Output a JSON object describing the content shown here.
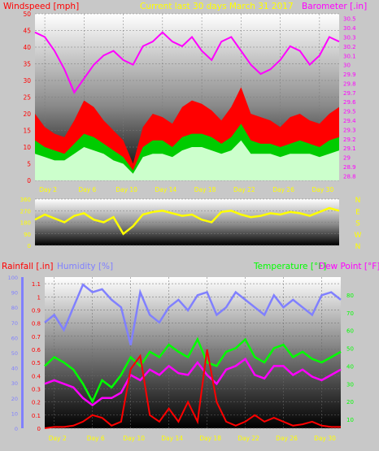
{
  "header": {
    "left_title": "Windspeed [mph]",
    "center_title": "Current last 30 days March 31 2017",
    "right_title": "Barometer [.in]"
  },
  "colors": {
    "windspeed": "#ff0000",
    "gust": "#00cc00",
    "avg_wind": "#ccffcc",
    "barometer": "#ff00ff",
    "direction": "#ffff00",
    "rainfall": "#ff0000",
    "humidity": "#8080ff",
    "temperature": "#00ff00",
    "dew_point": "#ff00ff",
    "title_yellow": "#ffff00",
    "axis_red": "#ff0000",
    "axis_magenta": "#ff00ff"
  },
  "x_tick_labels": [
    "Day 2",
    "Day 6",
    "Day 10",
    "Day 14",
    "Day 18",
    "Day 22",
    "Day 26",
    "Day 30"
  ],
  "chart_data": [
    {
      "type": "area",
      "name": "wind",
      "ylabel": "Windspeed [mph]",
      "ylim": [
        0,
        50
      ],
      "yticks": [
        0,
        5,
        10,
        15,
        20,
        25,
        30,
        35,
        40,
        45,
        50
      ],
      "y2label": "Barometer [.in]",
      "y2lim": [
        28.75,
        30.55
      ],
      "y2ticks": [
        "28.8",
        "28.9",
        "29",
        "29.1",
        "29.2",
        "29.3",
        "29.4",
        "29.5",
        "29.6",
        "29.7",
        "29.8",
        "29.9",
        "30",
        "30.1",
        "30.2",
        "30.3",
        "30.4",
        "30.5"
      ],
      "x_days": [
        1,
        2,
        3,
        4,
        5,
        6,
        7,
        8,
        9,
        10,
        11,
        12,
        13,
        14,
        15,
        16,
        17,
        18,
        19,
        20,
        21,
        22,
        23,
        24,
        25,
        26,
        27,
        28,
        29,
        30,
        31,
        32
      ],
      "series": [
        {
          "name": "Windspeed",
          "values": [
            20,
            16,
            14,
            13,
            18,
            24,
            22,
            18,
            15,
            12,
            5,
            16,
            20,
            19,
            17,
            22,
            24,
            23,
            21,
            18,
            22,
            28,
            20,
            19,
            18,
            16,
            19,
            20,
            18,
            17,
            20,
            22
          ]
        },
        {
          "name": "Gust",
          "values": [
            12,
            10,
            9,
            8,
            11,
            14,
            13,
            11,
            9,
            7,
            3,
            10,
            12,
            12,
            10,
            13,
            14,
            14,
            13,
            11,
            13,
            17,
            12,
            11,
            11,
            10,
            11,
            12,
            11,
            10,
            12,
            13
          ]
        },
        {
          "name": "Average",
          "values": [
            8,
            7,
            6,
            6,
            8,
            10,
            9,
            8,
            6,
            5,
            2,
            7,
            8,
            8,
            7,
            9,
            10,
            10,
            9,
            8,
            9,
            12,
            8,
            8,
            8,
            7,
            8,
            8,
            8,
            7,
            8,
            9
          ]
        },
        {
          "name": "Barometer",
          "values": [
            30.35,
            30.3,
            30.15,
            29.95,
            29.7,
            29.85,
            30.0,
            30.1,
            30.15,
            30.05,
            30.0,
            30.2,
            30.25,
            30.35,
            30.25,
            30.2,
            30.3,
            30.15,
            30.05,
            30.25,
            30.3,
            30.15,
            30.0,
            29.9,
            29.95,
            30.05,
            30.2,
            30.15,
            30.0,
            30.1,
            30.3,
            30.25
          ]
        }
      ]
    },
    {
      "type": "scatter",
      "name": "wind_direction",
      "ylim": [
        0,
        360
      ],
      "yticks": [
        0,
        90,
        180,
        270,
        360
      ],
      "compass_labels": [
        "N",
        "W",
        "S",
        "E",
        "N"
      ],
      "x_days": [
        1,
        2,
        3,
        4,
        5,
        6,
        7,
        8,
        9,
        10,
        11,
        12,
        13,
        14,
        15,
        16,
        17,
        18,
        19,
        20,
        21,
        22,
        23,
        24,
        25,
        26,
        27,
        28,
        29,
        30,
        31,
        32
      ],
      "series": [
        {
          "name": "Direction",
          "values": [
            200,
            240,
            210,
            180,
            230,
            250,
            200,
            180,
            220,
            90,
            150,
            240,
            260,
            270,
            250,
            230,
            240,
            200,
            180,
            260,
            270,
            240,
            220,
            230,
            250,
            240,
            260,
            250,
            230,
            260,
            290,
            270
          ]
        }
      ]
    },
    {
      "type": "line",
      "name": "rain_humidity_temp",
      "left_label_rain": "Rainfall [.in]",
      "left_label_humidity": "Humidity [%]",
      "right_label_temp": "Temperature [°F]",
      "right_label_dew": "Dew Point [°F]",
      "rain_ylim": [
        0,
        1.15
      ],
      "rain_yticks": [
        "0",
        "0.1",
        "0.2",
        "0.3",
        "0.4",
        "0.5",
        "0.6",
        "0.7",
        "0.8",
        "0.9",
        "1",
        "1.1"
      ],
      "humidity_yticks": [
        "0",
        "10",
        "20",
        "30",
        "40",
        "50",
        "60",
        "70",
        "80",
        "90",
        "100"
      ],
      "temp_ylim": [
        5,
        90
      ],
      "temp_yticks": [
        "10",
        "20",
        "30",
        "40",
        "50",
        "60",
        "70",
        "80"
      ],
      "x_days": [
        1,
        2,
        3,
        4,
        5,
        6,
        7,
        8,
        9,
        10,
        11,
        12,
        13,
        14,
        15,
        16,
        17,
        18,
        19,
        20,
        21,
        22,
        23,
        24,
        25,
        26,
        27,
        28,
        29,
        30,
        31,
        32
      ],
      "series": [
        {
          "name": "Rainfall",
          "values": [
            0,
            0.01,
            0.01,
            0.02,
            0.05,
            0.1,
            0.08,
            0.02,
            0.05,
            0.45,
            0.55,
            0.1,
            0.05,
            0.15,
            0.05,
            0.2,
            0.05,
            0.6,
            0.2,
            0.05,
            0.02,
            0.05,
            0.1,
            0.05,
            0.08,
            0.05,
            0.02,
            0.03,
            0.05,
            0.02,
            0.01,
            0.01
          ]
        },
        {
          "name": "Humidity",
          "values": [
            70,
            75,
            65,
            80,
            95,
            90,
            92,
            85,
            80,
            55,
            90,
            75,
            70,
            80,
            85,
            78,
            88,
            90,
            75,
            80,
            90,
            85,
            80,
            75,
            88,
            80,
            85,
            80,
            75,
            88,
            90,
            85
          ]
        },
        {
          "name": "Temperature",
          "values": [
            40,
            45,
            42,
            38,
            30,
            20,
            32,
            28,
            35,
            45,
            40,
            48,
            45,
            52,
            48,
            45,
            55,
            42,
            40,
            48,
            50,
            55,
            45,
            42,
            50,
            52,
            45,
            48,
            44,
            42,
            45,
            48
          ]
        },
        {
          "name": "Dew Point",
          "values": [
            30,
            32,
            30,
            28,
            22,
            18,
            22,
            22,
            25,
            35,
            32,
            38,
            35,
            40,
            36,
            35,
            42,
            35,
            30,
            38,
            40,
            44,
            35,
            33,
            40,
            40,
            35,
            38,
            34,
            32,
            35,
            38
          ]
        }
      ]
    }
  ]
}
